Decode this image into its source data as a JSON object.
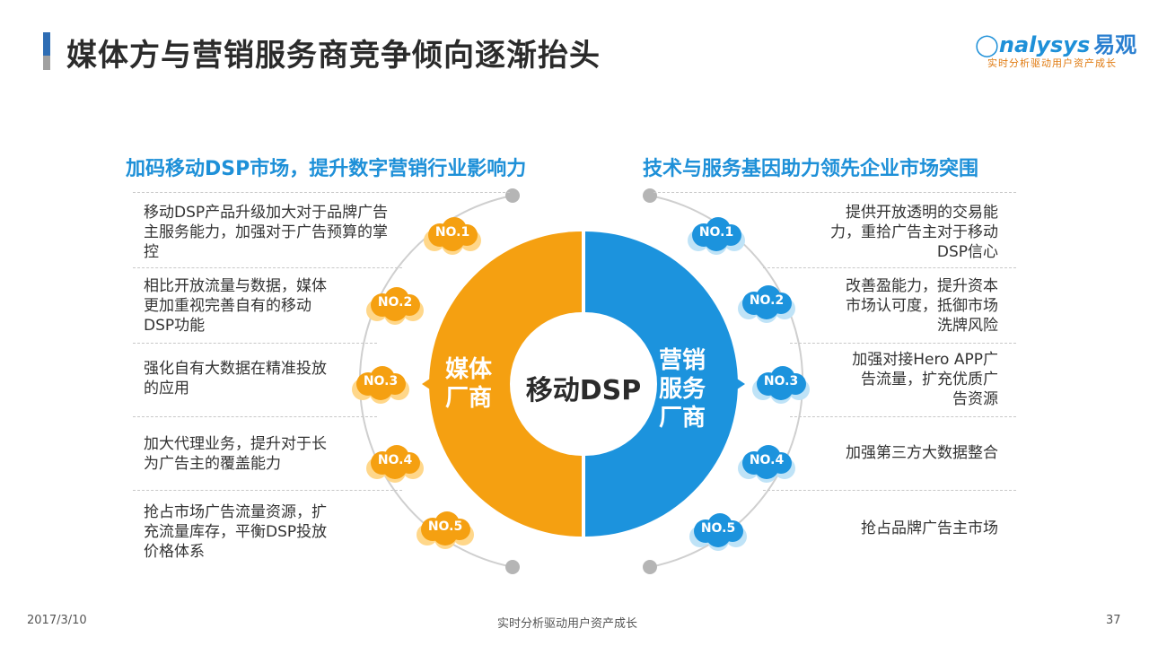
{
  "title": "媒体方与营销服务商竞争倾向逐渐抬头",
  "logo": {
    "brand": "nalysys",
    "brand_cn": "易观",
    "slogan": "实时分析驱动用户资产成长"
  },
  "left": {
    "heading": "加码移动DSP市场，提升数字营销行业影响力",
    "ring_label": [
      "媒体",
      "厂商"
    ],
    "items": [
      {
        "badge": "NO.1",
        "text": [
          "移动DSP产品升级加大对于品牌广告",
          "主服务能力，加强对于广告预算的掌",
          "控"
        ]
      },
      {
        "badge": "NO.2",
        "text": [
          "相比开放流量与数据，媒体",
          "更加重视完善自有的移动",
          "DSP功能"
        ]
      },
      {
        "badge": "NO.3",
        "text": [
          "强化自有大数据在精准投放",
          "的应用"
        ]
      },
      {
        "badge": "NO.4",
        "text": [
          "加大代理业务，提升对于长",
          "为广告主的覆盖能力"
        ]
      },
      {
        "badge": "NO.5",
        "text": [
          "抢占市场广告流量资源，扩",
          "充流量库存，平衡DSP投放",
          "价格体系"
        ]
      }
    ]
  },
  "right": {
    "heading": "技术与服务基因助力领先企业市场突围",
    "ring_label": [
      "营销",
      "服务",
      "厂商"
    ],
    "items": [
      {
        "badge": "NO.1",
        "text": [
          "提供开放透明的交易能",
          "力，重拾广告主对于移动",
          "DSP信心"
        ]
      },
      {
        "badge": "NO.2",
        "text": [
          "改善盈能力，提升资本",
          "市场认可度，抵御市场",
          "洗牌风险"
        ]
      },
      {
        "badge": "NO.3",
        "text": [
          "加强对接Hero APP广",
          "告流量，扩充优质广",
          "告资源"
        ]
      },
      {
        "badge": "NO.4",
        "text": [
          "加强第三方大数据整合"
        ]
      },
      {
        "badge": "NO.5",
        "text": [
          "抢占品牌广告主市场"
        ]
      }
    ]
  },
  "center": "移动DSP",
  "footer": {
    "date": "2017/3/10",
    "slogan": "实时分析驱动用户资产成长",
    "page": "37"
  },
  "colors": {
    "orange": "#f5a011",
    "blue": "#1c93dd",
    "title_blue": "#1e90d8"
  },
  "icons": {
    "cloud": "cloud-icon",
    "arrow": "triangle-arrow-icon"
  }
}
